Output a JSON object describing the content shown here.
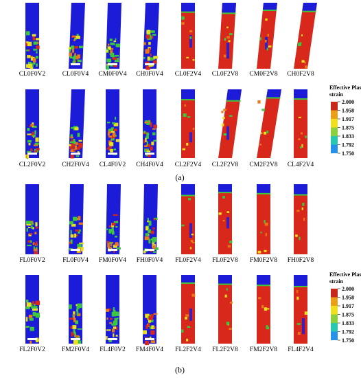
{
  "panel_a": {
    "caption": "(a)",
    "row1_labels": [
      "CL0F0V2",
      "CL0F0V4",
      "CM0F0V4",
      "CH0F0V4",
      "CL0F2V4",
      "CL0F2V8",
      "CM0F2V8",
      "CH0F2V8"
    ],
    "row2_labels": [
      "CL2F0V2",
      "CH2F0V4",
      "CL4F0V2",
      "CH4F0V4",
      "CL2F2V4",
      "CL2F2V8",
      "CM2F2V8",
      "CL4F2V4"
    ]
  },
  "panel_b": {
    "caption": "(b)",
    "row1_labels": [
      "FL0F0V2",
      "FL0F0V4",
      "FM0F0V4",
      "FH0F0V4",
      "FL0F2V4",
      "FL0F2V8",
      "FM0F2V8",
      "FH0F2V8"
    ],
    "row2_labels": [
      "FL2F0V2",
      "FM2F0V4",
      "FL4F0V2",
      "FM4F0V4",
      "FL2F2V4",
      "FL2F2V8",
      "FM2F2V8",
      "FL4F2V4"
    ]
  },
  "legend": {
    "title_line1": "Effective Plastic",
    "title_line2": "strain",
    "values": [
      "2.000",
      "1.958",
      "1.917",
      "1.875",
      "1.833",
      "1.792",
      "1.750"
    ],
    "colors": [
      "#c8281c",
      "#e8a018",
      "#f0e020",
      "#8cd040",
      "#28c8b0",
      "#2890e8",
      "#1c1cd8"
    ]
  },
  "colors": {
    "blue": "#1c1cd8",
    "red": "#d8281c",
    "green": "#3cc83c",
    "yellow": "#e8e020",
    "orange": "#e87818"
  }
}
